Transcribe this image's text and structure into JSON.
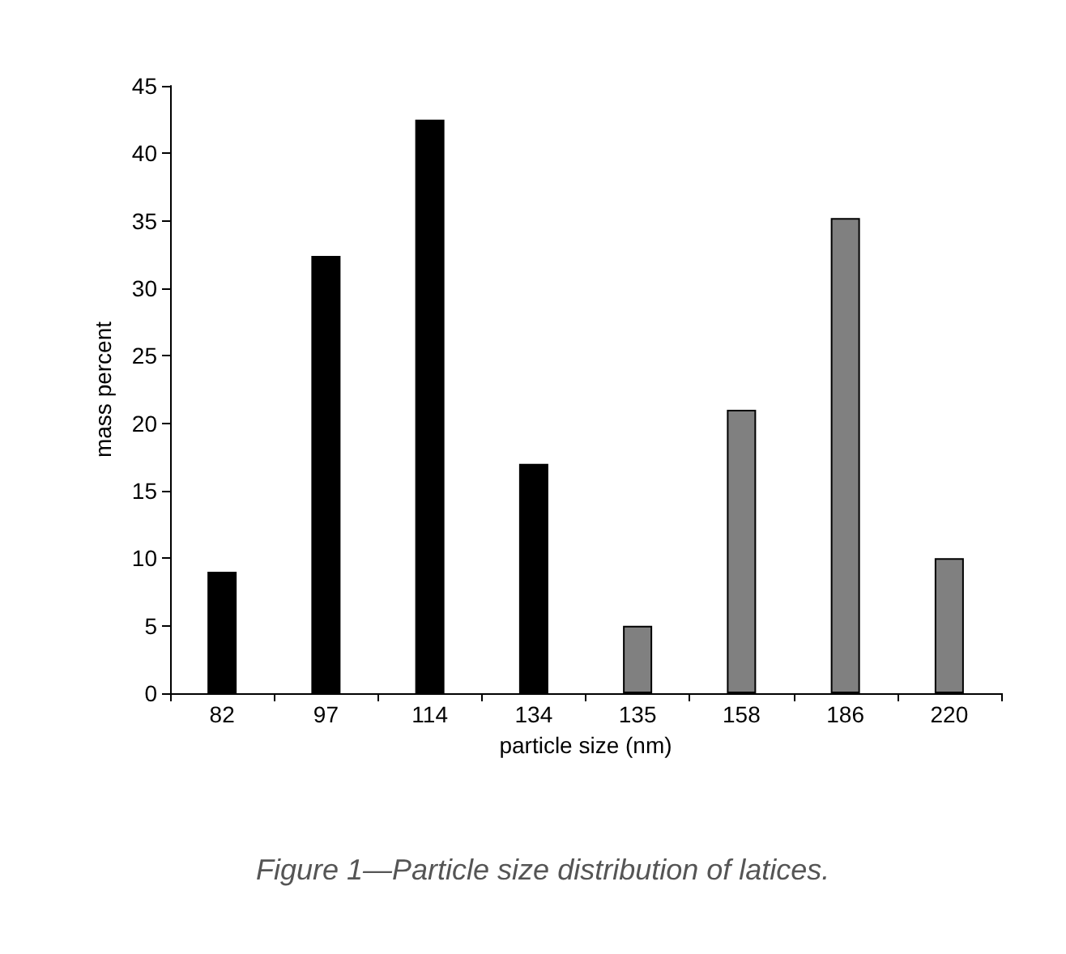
{
  "chart_data": {
    "type": "bar",
    "categories": [
      "82",
      "97",
      "114",
      "134",
      "135",
      "158",
      "186",
      "220"
    ],
    "series": [
      {
        "color": "#000000",
        "values": [
          9,
          32.4,
          42.5,
          17,
          null,
          null,
          null,
          null
        ]
      },
      {
        "color": "#808080",
        "values": [
          null,
          null,
          null,
          null,
          5,
          21,
          35.2,
          10
        ]
      }
    ],
    "xlabel": "particle size (nm)",
    "ylabel": "mass percent",
    "ylim": [
      0,
      45
    ],
    "yticks": [
      0,
      5,
      10,
      15,
      20,
      25,
      30,
      35,
      40,
      45
    ],
    "grid": false,
    "annotations": [
      "Figure 1—Particle size distribution of latices."
    ]
  }
}
